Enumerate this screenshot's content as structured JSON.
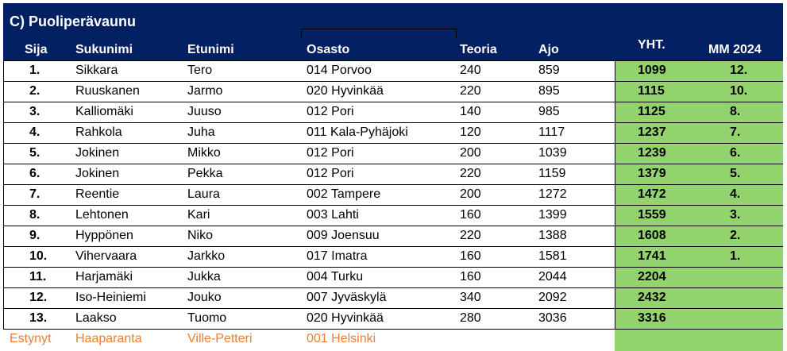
{
  "title": "C) Puoliperävaunu",
  "headers": {
    "sija": "Sija",
    "sukunimi": "Sukunimi",
    "etunimi": "Etunimi",
    "osasto": "Osasto",
    "teoria": "Teoria",
    "ajo": "Ajo",
    "yht": "YHT.",
    "mm": "MM 2024"
  },
  "rows": [
    {
      "sija": "1.",
      "sukunimi": "Sikkara",
      "etunimi": "Tero",
      "osasto": "014 Porvoo",
      "teoria": "240",
      "ajo": "859",
      "yht": "1099",
      "mm": "12."
    },
    {
      "sija": "2.",
      "sukunimi": "Ruuskanen",
      "etunimi": "Jarmo",
      "osasto": "020 Hyvinkää",
      "teoria": "220",
      "ajo": "895",
      "yht": "1115",
      "mm": "10."
    },
    {
      "sija": "3.",
      "sukunimi": "Kalliomäki",
      "etunimi": "Juuso",
      "osasto": "012 Pori",
      "teoria": "140",
      "ajo": "985",
      "yht": "1125",
      "mm": "8."
    },
    {
      "sija": "4.",
      "sukunimi": "Rahkola",
      "etunimi": "Juha",
      "osasto": "011 Kala-Pyhäjoki",
      "teoria": "120",
      "ajo": "1117",
      "yht": "1237",
      "mm": "7."
    },
    {
      "sija": "5.",
      "sukunimi": "Jokinen",
      "etunimi": "Mikko",
      "osasto": "012 Pori",
      "teoria": "200",
      "ajo": "1039",
      "yht": "1239",
      "mm": "6."
    },
    {
      "sija": "6.",
      "sukunimi": "Jokinen",
      "etunimi": "Pekka",
      "osasto": "012 Pori",
      "teoria": "220",
      "ajo": "1159",
      "yht": "1379",
      "mm": "5."
    },
    {
      "sija": "7.",
      "sukunimi": "Reentie",
      "etunimi": "Laura",
      "osasto": "002 Tampere",
      "teoria": "200",
      "ajo": "1272",
      "yht": "1472",
      "mm": "4."
    },
    {
      "sija": "8.",
      "sukunimi": "Lehtonen",
      "etunimi": "Kari",
      "osasto": "003 Lahti",
      "teoria": "160",
      "ajo": "1399",
      "yht": "1559",
      "mm": "3."
    },
    {
      "sija": "9.",
      "sukunimi": "Hyppönen",
      "etunimi": "Niko",
      "osasto": "009 Joensuu",
      "teoria": "220",
      "ajo": "1388",
      "yht": "1608",
      "mm": "2."
    },
    {
      "sija": "10.",
      "sukunimi": "Vihervaara",
      "etunimi": "Jarkko",
      "osasto": "017 Imatra",
      "teoria": "160",
      "ajo": "1581",
      "yht": "1741",
      "mm": "1."
    },
    {
      "sija": "11.",
      "sukunimi": "Harjamäki",
      "etunimi": "Jukka",
      "osasto": "004 Turku",
      "teoria": "160",
      "ajo": "2044",
      "yht": "2204",
      "mm": ""
    },
    {
      "sija": "12.",
      "sukunimi": "Iso-Heiniemi",
      "etunimi": "Jouko",
      "osasto": "007 Jyväskylä",
      "teoria": "340",
      "ajo": "2092",
      "yht": "2432",
      "mm": ""
    },
    {
      "sija": "13.",
      "sukunimi": "Laakso",
      "etunimi": "Tuomo",
      "osasto": "020 Hyvinkää",
      "teoria": "280",
      "ajo": "3036",
      "yht": "3316",
      "mm": ""
    }
  ],
  "dnf_row": {
    "sija": "Estynyt",
    "sukunimi": "Haaparanta",
    "etunimi": "Ville-Petteri",
    "osasto": "001 Helsinki"
  },
  "colors": {
    "header_bg": "#032063",
    "green": "#92d36e",
    "orange": "#ed7d31"
  }
}
